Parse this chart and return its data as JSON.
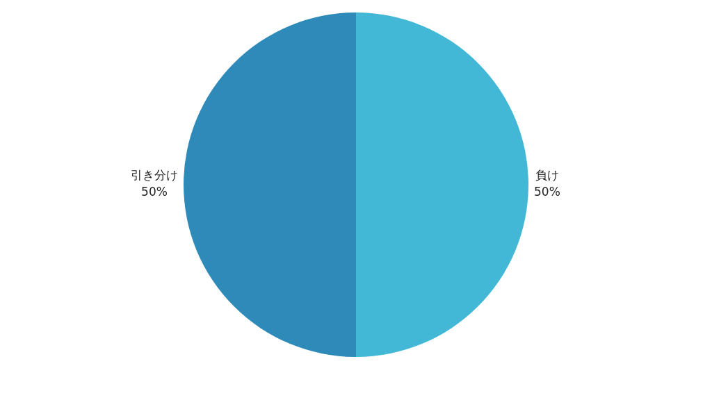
{
  "chart_data": {
    "type": "pie",
    "categories": [
      "負け",
      "引き分け"
    ],
    "values": [
      50,
      50
    ],
    "colors": [
      "#42b7d6",
      "#2e8bb9"
    ],
    "value_labels": [
      "50%",
      "50%"
    ],
    "legend": false
  }
}
